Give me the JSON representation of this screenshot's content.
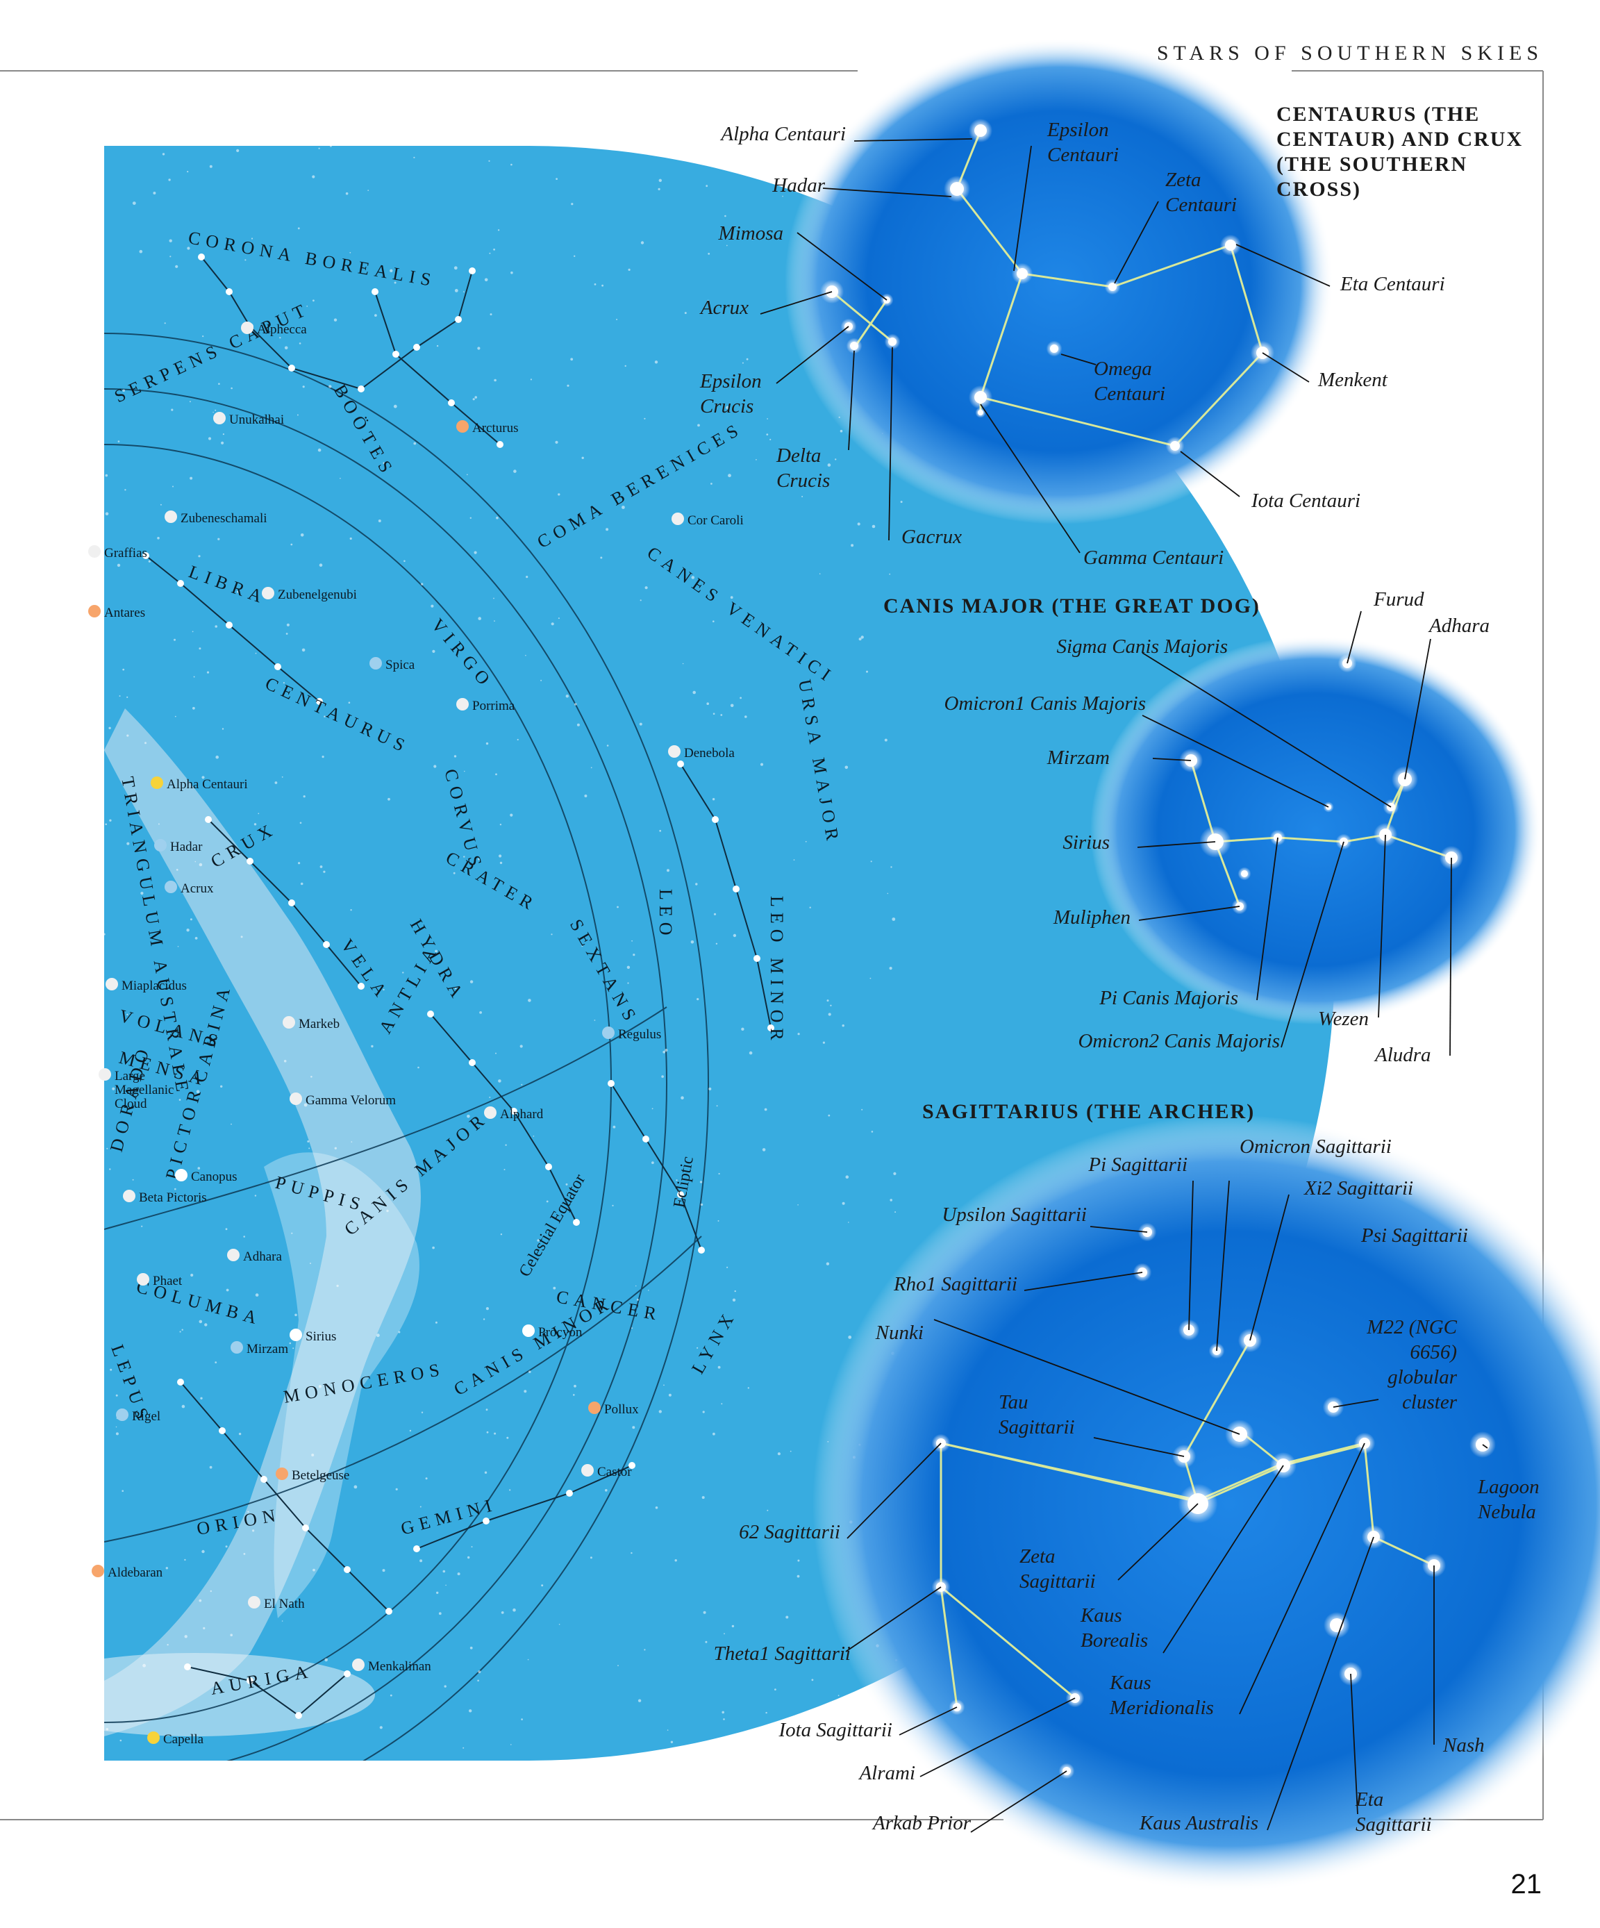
{
  "header": "STARS OF SOUTHERN SKIES",
  "page_number": "21",
  "colors": {
    "map_blue": "#3aaee0",
    "star_glow": "#0a6fd6",
    "label_line": "#111111"
  },
  "sky_map": {
    "constellations": [
      "CORONA BOREALIS",
      "SERPENS CAPUT",
      "BOÖTES",
      "COMA BERENICES",
      "CANES VENATICI",
      "LIBRA",
      "VIRGO",
      "CENTAURUS",
      "CORVUS",
      "URSA MAJOR",
      "CRATER",
      "SEXTANS",
      "LEO",
      "LEO MINOR",
      "CRUX",
      "TRIANGULUM AUSTRALE",
      "HYDRA",
      "VELA",
      "ANTLIA",
      "VOLANS",
      "MENSA",
      "CARINA",
      "DORADO",
      "PICTOR",
      "PUPPIS",
      "CANIS MAJOR",
      "COLUMBA",
      "CANCER",
      "LYNX",
      "LEPUS",
      "MONOCEROS",
      "CANIS MINOR",
      "ORION",
      "GEMINI",
      "AURIGA"
    ],
    "stars": [
      "Alphecca",
      "Unukalhai",
      "Arcturus",
      "Zubeneschamali",
      "Graffias",
      "Cor Caroli",
      "Antares",
      "Zubenelgenubi",
      "Spica",
      "Porrima",
      "Denebola",
      "Alpha Centauri",
      "Hadar",
      "Acrux",
      "Miaplacidus",
      "Markeb",
      "Regulus",
      "Large Magellanic Cloud",
      "Gamma Velorum",
      "Alphard",
      "Canopus",
      "Beta Pictoris",
      "Adhara",
      "Phaet",
      "Sirius",
      "Mirzam",
      "Procyon",
      "Pollux",
      "Rigel",
      "Betelgeuse",
      "Castor",
      "Aldebaran",
      "El Nath",
      "Menkalinan",
      "Capella"
    ],
    "lines": [
      "Ecliptic",
      "Celestial Equator"
    ]
  },
  "panels": [
    {
      "title": "CENTAURUS (THE CENTAUR) AND CRUX (THE SOUTHERN CROSS)",
      "labels": [
        "Alpha Centauri",
        "Epsilon Centauri",
        "Zeta Centauri",
        "Hadar",
        "Mimosa",
        "Acrux",
        "Eta Centauri",
        "Epsilon Crucis",
        "Omega Centauri",
        "Menkent",
        "Delta Crucis",
        "Iota Centauri",
        "Gacrux",
        "Gamma Centauri"
      ]
    },
    {
      "title": "CANIS MAJOR (THE GREAT DOG)",
      "labels": [
        "Furud",
        "Adhara",
        "Sigma Canis Majoris",
        "Omicron1 Canis Majoris",
        "Mirzam",
        "Sirius",
        "Muliphen",
        "Pi Canis Majoris",
        "Wezen",
        "Omicron2 Canis Majoris",
        "Aludra"
      ]
    },
    {
      "title": "SAGITTARIUS (THE ARCHER)",
      "labels": [
        "Omicron Sagittarii",
        "Pi Sagittarii",
        "Xi2 Sagittarii",
        "Upsilon Sagittarii",
        "Psi Sagittarii",
        "Rho1 Sagittarii",
        "Nunki",
        "M22 (NGC 6656) globular cluster",
        "Tau Sagittarii",
        "Lagoon Nebula",
        "62 Sagittarii",
        "Zeta Sagittarii",
        "Kaus Borealis",
        "Theta1 Sagittarii",
        "Kaus Meridionalis",
        "Iota Sagittarii",
        "Nash",
        "Alrami",
        "Arkab Prior",
        "Kaus Australis",
        "Eta Sagittarii"
      ]
    }
  ]
}
